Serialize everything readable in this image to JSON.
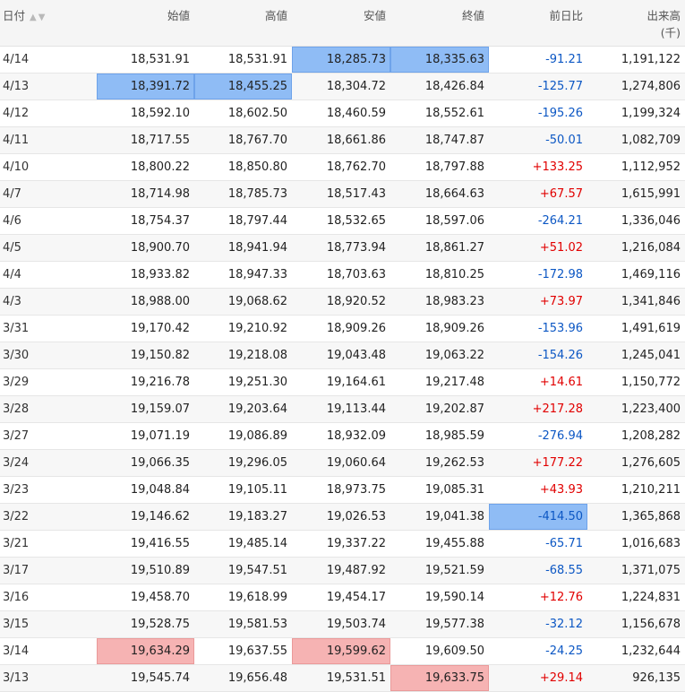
{
  "headers": {
    "date": "日付",
    "open": "始値",
    "high": "高値",
    "low": "安値",
    "close": "終値",
    "change": "前日比",
    "volume": "出来高",
    "volume_unit": "(千)"
  },
  "colors": {
    "up": "#e10000",
    "down": "#0c57c4",
    "max_highlight": "#8fbcf5",
    "min_highlight": "#f6b3b3"
  },
  "rows": [
    {
      "date": "4/14",
      "open": "18,531.91",
      "high": "18,531.91",
      "low": "18,285.73",
      "close": "18,335.63",
      "change": "-91.21",
      "volume": "1,191,122",
      "dir": "down",
      "hl": {
        "low": "blue",
        "close": "blue"
      }
    },
    {
      "date": "4/13",
      "open": "18,391.72",
      "high": "18,455.25",
      "low": "18,304.72",
      "close": "18,426.84",
      "change": "-125.77",
      "volume": "1,274,806",
      "dir": "down",
      "hl": {
        "open": "blue",
        "high": "blue"
      }
    },
    {
      "date": "4/12",
      "open": "18,592.10",
      "high": "18,602.50",
      "low": "18,460.59",
      "close": "18,552.61",
      "change": "-195.26",
      "volume": "1,199,324",
      "dir": "down"
    },
    {
      "date": "4/11",
      "open": "18,717.55",
      "high": "18,767.70",
      "low": "18,661.86",
      "close": "18,747.87",
      "change": "-50.01",
      "volume": "1,082,709",
      "dir": "down"
    },
    {
      "date": "4/10",
      "open": "18,800.22",
      "high": "18,850.80",
      "low": "18,762.70",
      "close": "18,797.88",
      "change": "+133.25",
      "volume": "1,112,952",
      "dir": "up"
    },
    {
      "date": "4/7",
      "open": "18,714.98",
      "high": "18,785.73",
      "low": "18,517.43",
      "close": "18,664.63",
      "change": "+67.57",
      "volume": "1,615,991",
      "dir": "up"
    },
    {
      "date": "4/6",
      "open": "18,754.37",
      "high": "18,797.44",
      "low": "18,532.65",
      "close": "18,597.06",
      "change": "-264.21",
      "volume": "1,336,046",
      "dir": "down"
    },
    {
      "date": "4/5",
      "open": "18,900.70",
      "high": "18,941.94",
      "low": "18,773.94",
      "close": "18,861.27",
      "change": "+51.02",
      "volume": "1,216,084",
      "dir": "up"
    },
    {
      "date": "4/4",
      "open": "18,933.82",
      "high": "18,947.33",
      "low": "18,703.63",
      "close": "18,810.25",
      "change": "-172.98",
      "volume": "1,469,116",
      "dir": "down"
    },
    {
      "date": "4/3",
      "open": "18,988.00",
      "high": "19,068.62",
      "low": "18,920.52",
      "close": "18,983.23",
      "change": "+73.97",
      "volume": "1,341,846",
      "dir": "up"
    },
    {
      "date": "3/31",
      "open": "19,170.42",
      "high": "19,210.92",
      "low": "18,909.26",
      "close": "18,909.26",
      "change": "-153.96",
      "volume": "1,491,619",
      "dir": "down"
    },
    {
      "date": "3/30",
      "open": "19,150.82",
      "high": "19,218.08",
      "low": "19,043.48",
      "close": "19,063.22",
      "change": "-154.26",
      "volume": "1,245,041",
      "dir": "down"
    },
    {
      "date": "3/29",
      "open": "19,216.78",
      "high": "19,251.30",
      "low": "19,164.61",
      "close": "19,217.48",
      "change": "+14.61",
      "volume": "1,150,772",
      "dir": "up"
    },
    {
      "date": "3/28",
      "open": "19,159.07",
      "high": "19,203.64",
      "low": "19,113.44",
      "close": "19,202.87",
      "change": "+217.28",
      "volume": "1,223,400",
      "dir": "up"
    },
    {
      "date": "3/27",
      "open": "19,071.19",
      "high": "19,086.89",
      "low": "18,932.09",
      "close": "18,985.59",
      "change": "-276.94",
      "volume": "1,208,282",
      "dir": "down"
    },
    {
      "date": "3/24",
      "open": "19,066.35",
      "high": "19,296.05",
      "low": "19,060.64",
      "close": "19,262.53",
      "change": "+177.22",
      "volume": "1,276,605",
      "dir": "up"
    },
    {
      "date": "3/23",
      "open": "19,048.84",
      "high": "19,105.11",
      "low": "18,973.75",
      "close": "19,085.31",
      "change": "+43.93",
      "volume": "1,210,211",
      "dir": "up"
    },
    {
      "date": "3/22",
      "open": "19,146.62",
      "high": "19,183.27",
      "low": "19,026.53",
      "close": "19,041.38",
      "change": "-414.50",
      "volume": "1,365,868",
      "dir": "down",
      "hl": {
        "change": "blue"
      }
    },
    {
      "date": "3/21",
      "open": "19,416.55",
      "high": "19,485.14",
      "low": "19,337.22",
      "close": "19,455.88",
      "change": "-65.71",
      "volume": "1,016,683",
      "dir": "down"
    },
    {
      "date": "3/17",
      "open": "19,510.89",
      "high": "19,547.51",
      "low": "19,487.92",
      "close": "19,521.59",
      "change": "-68.55",
      "volume": "1,371,075",
      "dir": "down"
    },
    {
      "date": "3/16",
      "open": "19,458.70",
      "high": "19,618.99",
      "low": "19,454.17",
      "close": "19,590.14",
      "change": "+12.76",
      "volume": "1,224,831",
      "dir": "up"
    },
    {
      "date": "3/15",
      "open": "19,528.75",
      "high": "19,581.53",
      "low": "19,503.74",
      "close": "19,577.38",
      "change": "-32.12",
      "volume": "1,156,678",
      "dir": "down"
    },
    {
      "date": "3/14",
      "open": "19,634.29",
      "high": "19,637.55",
      "low": "19,599.62",
      "close": "19,609.50",
      "change": "-24.25",
      "volume": "1,232,644",
      "dir": "down",
      "hl": {
        "open": "red",
        "low": "red"
      }
    },
    {
      "date": "3/13",
      "open": "19,545.74",
      "high": "19,656.48",
      "low": "19,531.51",
      "close": "19,633.75",
      "change": "+29.14",
      "volume": "926,135",
      "dir": "up",
      "hl": {
        "close": "red"
      }
    }
  ]
}
